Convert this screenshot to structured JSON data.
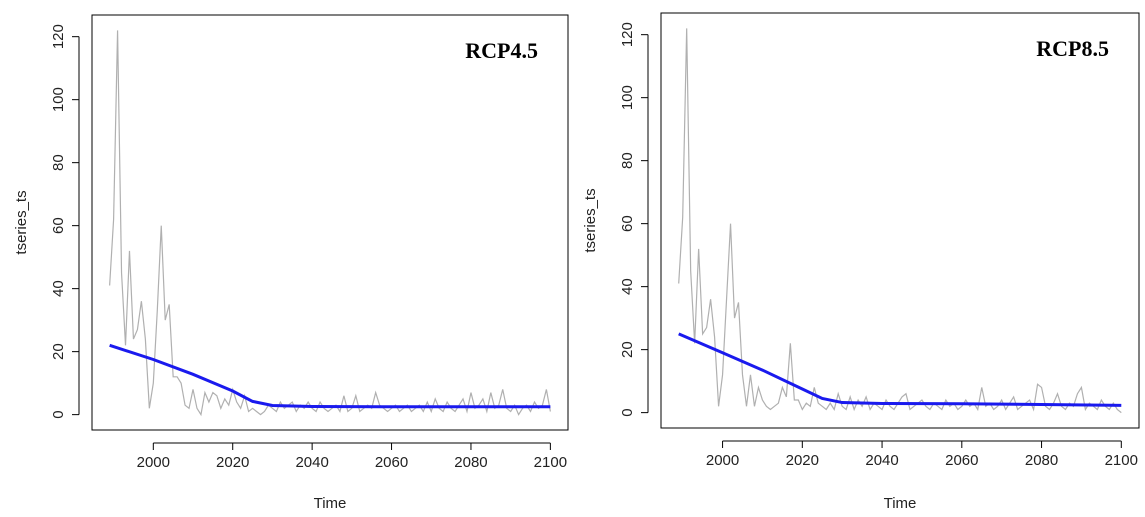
{
  "chart_data": [
    {
      "type": "line",
      "annotation": "RCP4.5",
      "xlabel": "Time",
      "ylabel": "tseries_ts",
      "xlim": [
        1984.56,
        2104.44
      ],
      "ylim": [
        -4.88,
        126.88
      ],
      "xticks": [
        2000,
        2020,
        2040,
        2060,
        2080,
        2100
      ],
      "yticks": [
        0,
        20,
        40,
        60,
        80,
        100,
        120
      ],
      "x": [
        1989,
        1990,
        1991,
        1992,
        1993,
        1994,
        1995,
        1996,
        1997,
        1998,
        1999,
        2000,
        2001,
        2002,
        2003,
        2004,
        2005,
        2006,
        2007,
        2008,
        2009,
        2010,
        2011,
        2012,
        2013,
        2014,
        2015,
        2016,
        2017,
        2018,
        2019,
        2020,
        2021,
        2022,
        2023,
        2024,
        2025,
        2026,
        2027,
        2028,
        2029,
        2030,
        2031,
        2032,
        2033,
        2034,
        2035,
        2036,
        2037,
        2038,
        2039,
        2040,
        2041,
        2042,
        2043,
        2044,
        2045,
        2046,
        2047,
        2048,
        2049,
        2050,
        2051,
        2052,
        2053,
        2054,
        2055,
        2056,
        2057,
        2058,
        2059,
        2060,
        2061,
        2062,
        2063,
        2064,
        2065,
        2066,
        2067,
        2068,
        2069,
        2070,
        2071,
        2072,
        2073,
        2074,
        2075,
        2076,
        2077,
        2078,
        2079,
        2080,
        2081,
        2082,
        2083,
        2084,
        2085,
        2086,
        2087,
        2088,
        2089,
        2090,
        2091,
        2092,
        2093,
        2094,
        2095,
        2096,
        2097,
        2098,
        2099,
        2100
      ],
      "series": [
        {
          "color": "#b0b0b0",
          "values": [
            41,
            62,
            122,
            45,
            22,
            52,
            24,
            27,
            36,
            24,
            2,
            10,
            33,
            60,
            30,
            35,
            12,
            12,
            10,
            3,
            2,
            8,
            2,
            0,
            7,
            4,
            7,
            6,
            2,
            5,
            3,
            8,
            4,
            2,
            6,
            1,
            2,
            1,
            0,
            1,
            3,
            2,
            1,
            4,
            2,
            3,
            4,
            1,
            3,
            2,
            4,
            2,
            1,
            4,
            2,
            1,
            2,
            3,
            1,
            6,
            1,
            2,
            6,
            1,
            2,
            3,
            2,
            7,
            3,
            2,
            1,
            2,
            3,
            1,
            2,
            3,
            1,
            2,
            3,
            1,
            4,
            1,
            5,
            2,
            1,
            4,
            2,
            1,
            3,
            5,
            1,
            7,
            2,
            3,
            5,
            1,
            7,
            2,
            3,
            8,
            2,
            1,
            3,
            0,
            2,
            3,
            1,
            4,
            2,
            3,
            8,
            1
          ]
        },
        {
          "color": "#1a1aee",
          "x": [
            1989,
            2000,
            2010,
            2020,
            2025,
            2030,
            2040,
            2060,
            2080,
            2100
          ],
          "values": [
            22,
            17.5,
            12.8,
            7.5,
            4.2,
            2.9,
            2.6,
            2.5,
            2.5,
            2.5
          ]
        }
      ]
    },
    {
      "type": "line",
      "annotation": "RCP8.5",
      "xlabel": "Time",
      "ylabel": "tseries_ts",
      "xlim": [
        1984.56,
        2104.44
      ],
      "ylim": [
        -4.88,
        126.88
      ],
      "xticks": [
        2000,
        2020,
        2040,
        2060,
        2080,
        2100
      ],
      "yticks": [
        0,
        20,
        40,
        60,
        80,
        100,
        120
      ],
      "x": [
        1989,
        1990,
        1991,
        1992,
        1993,
        1994,
        1995,
        1996,
        1997,
        1998,
        1999,
        2000,
        2001,
        2002,
        2003,
        2004,
        2005,
        2006,
        2007,
        2008,
        2009,
        2010,
        2011,
        2012,
        2013,
        2014,
        2015,
        2016,
        2017,
        2018,
        2019,
        2020,
        2021,
        2022,
        2023,
        2024,
        2025,
        2026,
        2027,
        2028,
        2029,
        2030,
        2031,
        2032,
        2033,
        2034,
        2035,
        2036,
        2037,
        2038,
        2039,
        2040,
        2041,
        2042,
        2043,
        2044,
        2045,
        2046,
        2047,
        2048,
        2049,
        2050,
        2051,
        2052,
        2053,
        2054,
        2055,
        2056,
        2057,
        2058,
        2059,
        2060,
        2061,
        2062,
        2063,
        2064,
        2065,
        2066,
        2067,
        2068,
        2069,
        2070,
        2071,
        2072,
        2073,
        2074,
        2075,
        2076,
        2077,
        2078,
        2079,
        2080,
        2081,
        2082,
        2083,
        2084,
        2085,
        2086,
        2087,
        2088,
        2089,
        2090,
        2091,
        2092,
        2093,
        2094,
        2095,
        2096,
        2097,
        2098,
        2099,
        2100
      ],
      "series": [
        {
          "color": "#b0b0b0",
          "values": [
            41,
            62,
            122,
            45,
            22,
            52,
            25,
            27,
            36,
            24,
            2,
            12,
            36,
            60,
            30,
            35,
            12,
            2,
            12,
            2,
            8,
            4,
            2,
            1,
            2,
            3,
            8,
            5,
            22,
            4,
            4,
            1,
            3,
            2,
            8,
            3,
            2,
            1,
            3,
            1,
            6,
            2,
            1,
            5,
            1,
            4,
            2,
            5,
            1,
            3,
            2,
            1,
            4,
            2,
            1,
            3,
            5,
            6,
            1,
            2,
            3,
            4,
            2,
            1,
            3,
            2,
            1,
            4,
            2,
            3,
            1,
            2,
            4,
            2,
            3,
            1,
            8,
            2,
            3,
            1,
            2,
            4,
            1,
            3,
            5,
            1,
            2,
            3,
            4,
            1,
            9,
            8,
            2,
            1,
            3,
            6,
            2,
            1,
            3,
            2,
            6,
            8,
            1,
            3,
            2,
            1,
            4,
            2,
            1,
            3,
            1,
            0
          ]
        },
        {
          "color": "#1a1aee",
          "x": [
            1989,
            2000,
            2010,
            2020,
            2025,
            2030,
            2040,
            2060,
            2080,
            2100
          ],
          "values": [
            25,
            19,
            13.5,
            7.5,
            4.5,
            3.2,
            2.9,
            2.8,
            2.6,
            2.3
          ]
        }
      ]
    }
  ]
}
